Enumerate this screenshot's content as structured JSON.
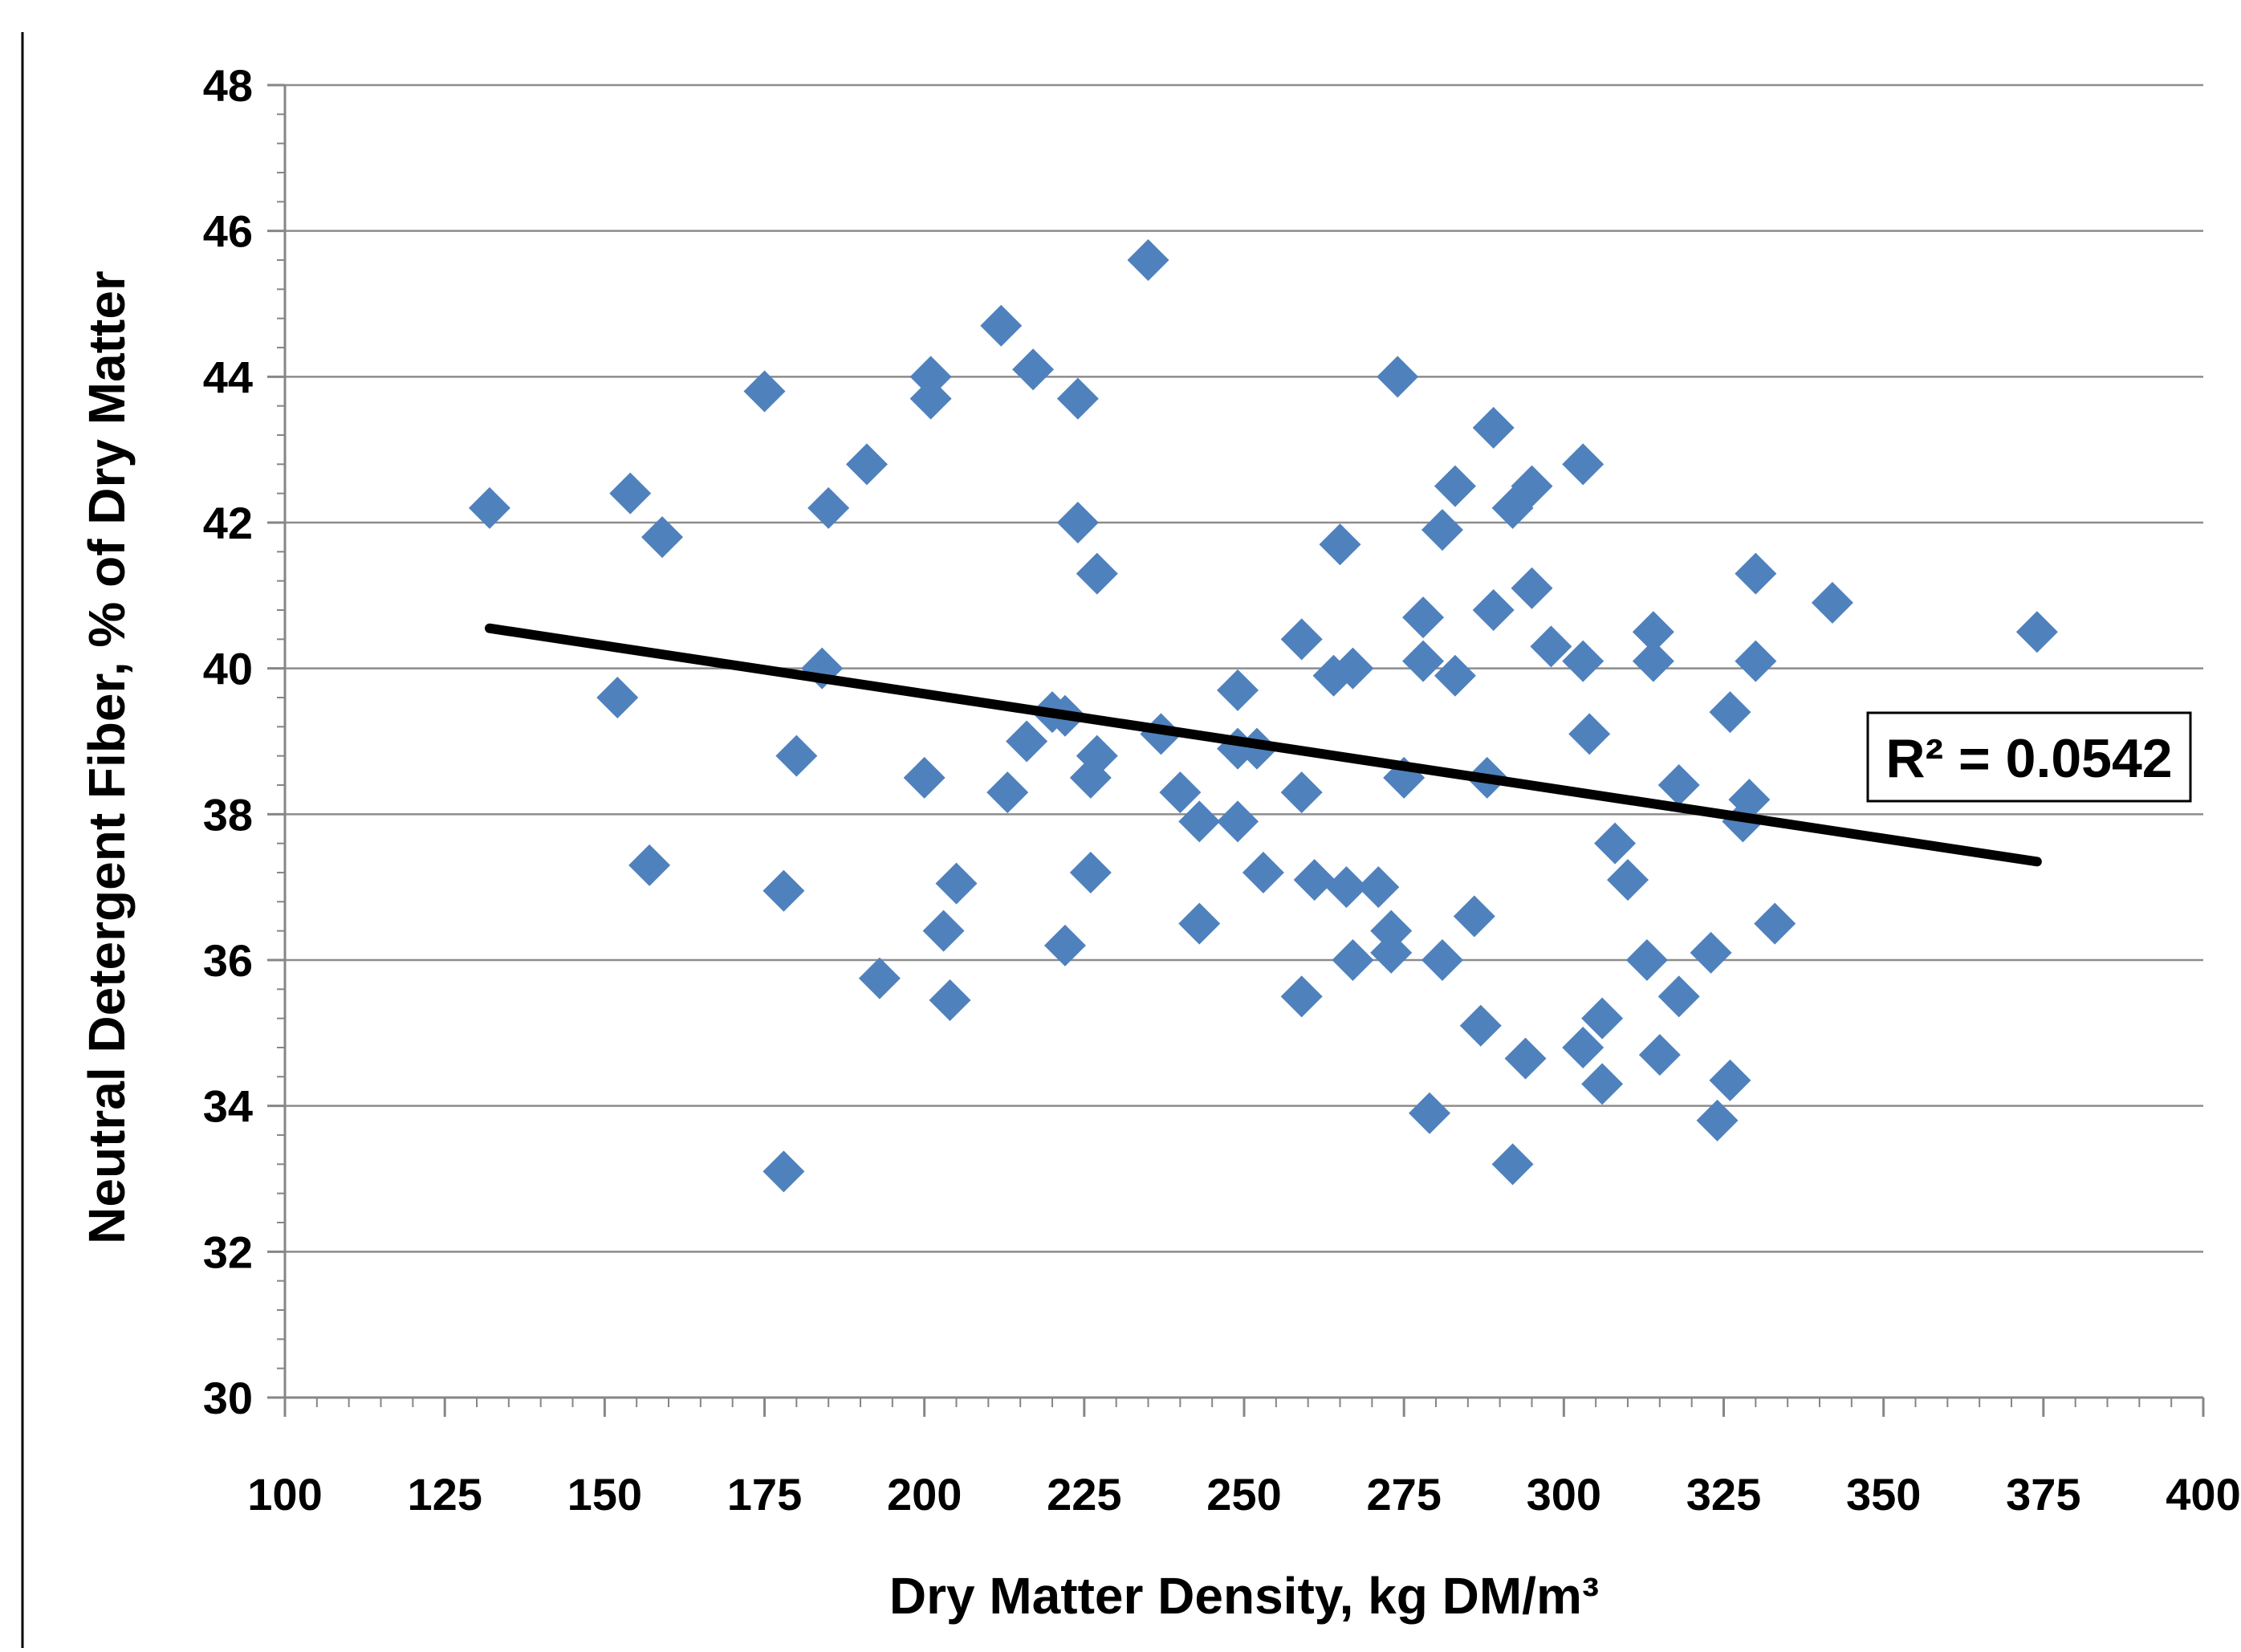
{
  "chart_data": {
    "type": "scatter",
    "title": "",
    "xlabel": "Dry Matter Density,  kg DM/m³",
    "ylabel": "Neutral Detergent Fiber, % of Dry Matter",
    "xlim": [
      100,
      400
    ],
    "ylim": [
      30,
      48
    ],
    "x_ticks": [
      100,
      125,
      150,
      175,
      200,
      225,
      250,
      275,
      300,
      325,
      350,
      375,
      400
    ],
    "y_ticks": [
      30,
      32,
      34,
      36,
      38,
      40,
      42,
      44,
      46,
      48
    ],
    "x_tick_labels": [
      "100",
      "125",
      "150",
      "175",
      "200",
      "225",
      "250",
      "275",
      "300",
      "325",
      "350",
      "375",
      "400"
    ],
    "y_tick_labels": [
      "30",
      "32",
      "34",
      "36",
      "38",
      "40",
      "42",
      "44",
      "46",
      "48"
    ],
    "grid": "horizontal major gridlines",
    "legend": "none",
    "marker": "diamond",
    "colors": {
      "marker": "#4F81BD",
      "trendline": "#000000",
      "gridline": "#8C8C8C",
      "axis": "#868686"
    },
    "series": [
      {
        "points": [
          [
            132,
            42.2
          ],
          [
            152,
            39.6
          ],
          [
            154,
            42.4
          ],
          [
            157,
            37.3
          ],
          [
            159,
            41.8
          ],
          [
            175,
            43.8
          ],
          [
            178,
            36.95
          ],
          [
            178,
            33.1
          ],
          [
            180,
            38.8
          ],
          [
            184,
            40.0
          ],
          [
            185,
            42.2
          ],
          [
            191,
            42.8
          ],
          [
            193,
            35.75
          ],
          [
            200,
            38.5
          ],
          [
            201,
            44.0
          ],
          [
            201,
            43.7
          ],
          [
            203,
            36.4
          ],
          [
            204,
            35.45
          ],
          [
            205,
            37.05
          ],
          [
            212,
            44.7
          ],
          [
            213,
            38.3
          ],
          [
            216,
            39.0
          ],
          [
            217,
            44.1
          ],
          [
            220,
            39.4
          ],
          [
            222,
            39.35
          ],
          [
            222,
            36.2
          ],
          [
            224,
            43.7
          ],
          [
            224,
            42.0
          ],
          [
            226,
            38.5
          ],
          [
            226,
            37.2
          ],
          [
            227,
            38.8
          ],
          [
            227,
            41.3
          ],
          [
            235,
            45.6
          ],
          [
            237,
            39.1
          ],
          [
            240,
            38.3
          ],
          [
            243,
            37.9
          ],
          [
            243,
            36.5
          ],
          [
            249,
            39.7
          ],
          [
            249,
            37.9
          ],
          [
            249,
            38.9
          ],
          [
            252,
            38.9
          ],
          [
            253,
            37.2
          ],
          [
            259,
            38.3
          ],
          [
            259,
            40.4
          ],
          [
            259,
            35.5
          ],
          [
            261,
            37.1
          ],
          [
            264,
            39.9
          ],
          [
            265,
            41.7
          ],
          [
            266,
            37.0
          ],
          [
            267,
            40.0
          ],
          [
            267,
            36.0
          ],
          [
            271,
            37.0
          ],
          [
            273,
            36.4
          ],
          [
            273,
            36.1
          ],
          [
            274,
            44.0
          ],
          [
            275,
            38.5
          ],
          [
            278,
            40.7
          ],
          [
            278,
            40.1
          ],
          [
            279,
            33.9
          ],
          [
            281,
            41.9
          ],
          [
            281,
            36.0
          ],
          [
            283,
            42.5
          ],
          [
            283,
            39.9
          ],
          [
            286,
            36.6
          ],
          [
            287,
            35.1
          ],
          [
            288,
            38.5
          ],
          [
            289,
            43.3
          ],
          [
            289,
            40.8
          ],
          [
            292,
            42.2
          ],
          [
            292,
            33.2
          ],
          [
            294,
            34.65
          ],
          [
            295,
            42.5
          ],
          [
            295,
            41.1
          ],
          [
            298,
            40.3
          ],
          [
            303,
            42.8
          ],
          [
            303,
            40.1
          ],
          [
            303,
            34.8
          ],
          [
            304,
            39.1
          ],
          [
            306,
            35.2
          ],
          [
            306,
            34.3
          ],
          [
            308,
            37.6
          ],
          [
            310,
            37.1
          ],
          [
            313,
            36.0
          ],
          [
            314,
            40.5
          ],
          [
            314,
            40.1
          ],
          [
            315,
            34.7
          ],
          [
            318,
            38.4
          ],
          [
            318,
            35.5
          ],
          [
            323,
            36.1
          ],
          [
            324,
            33.8
          ],
          [
            326,
            39.4
          ],
          [
            326,
            34.35
          ],
          [
            328,
            37.9
          ],
          [
            329,
            38.2
          ],
          [
            330,
            41.3
          ],
          [
            330,
            40.1
          ],
          [
            333,
            36.5
          ],
          [
            342,
            40.9
          ],
          [
            374,
            40.5
          ]
        ]
      }
    ],
    "trendline": {
      "type": "linear",
      "x": [
        132,
        374
      ],
      "y": [
        40.55,
        37.35
      ],
      "label": "R² = 0.0542"
    }
  }
}
